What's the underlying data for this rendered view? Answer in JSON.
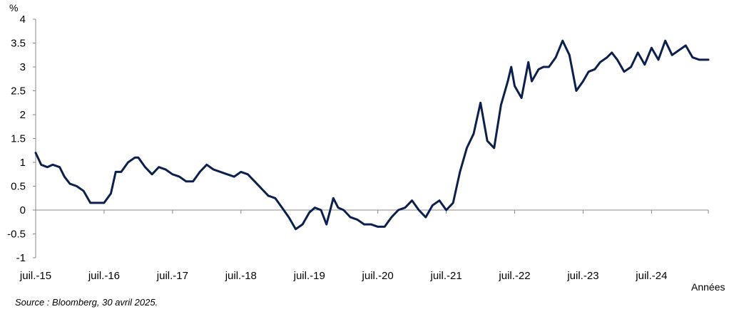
{
  "chart_data": {
    "type": "line",
    "ylabel": "%",
    "xlabel": "Années",
    "ylim": [
      -1,
      4
    ],
    "yticks": [
      -1,
      -0.5,
      0,
      0.5,
      1,
      1.5,
      2,
      2.5,
      3,
      3.5,
      4
    ],
    "ytick_labels": [
      "-1",
      "-0.5",
      "0",
      "0.5",
      "1",
      "1.5",
      "2",
      "2.5",
      "3",
      "3.5",
      "4"
    ],
    "xlim": [
      2015.5,
      2025.33
    ],
    "xticks": [
      2015.5,
      2016.5,
      2017.5,
      2018.5,
      2019.5,
      2020.5,
      2021.5,
      2022.5,
      2023.5,
      2024.5
    ],
    "xtick_labels": [
      "juil.-15",
      "juil.-16",
      "juil.-17",
      "juil.-18",
      "juil.-19",
      "juil.-20",
      "juil.-21",
      "juil.-22",
      "juil.-23",
      "juil.-24"
    ],
    "grid": false,
    "legend": "none",
    "line_color": "#0d1f4f",
    "series": [
      {
        "x": [
          2015.5,
          2015.58,
          2015.67,
          2015.75,
          2015.85,
          2015.92,
          2016.0,
          2016.1,
          2016.2,
          2016.3,
          2016.4,
          2016.5,
          2016.6,
          2016.67,
          2016.75,
          2016.85,
          2016.95,
          2017.0,
          2017.1,
          2017.2,
          2017.3,
          2017.4,
          2017.5,
          2017.6,
          2017.7,
          2017.8,
          2017.9,
          2018.0,
          2018.1,
          2018.2,
          2018.3,
          2018.4,
          2018.5,
          2018.6,
          2018.7,
          2018.8,
          2018.9,
          2019.0,
          2019.1,
          2019.2,
          2019.3,
          2019.4,
          2019.5,
          2019.58,
          2019.67,
          2019.75,
          2019.85,
          2019.92,
          2020.0,
          2020.1,
          2020.2,
          2020.3,
          2020.4,
          2020.5,
          2020.6,
          2020.7,
          2020.8,
          2020.9,
          2021.0,
          2021.1,
          2021.2,
          2021.3,
          2021.4,
          2021.5,
          2021.6,
          2021.7,
          2021.8,
          2021.9,
          2022.0,
          2022.1,
          2022.2,
          2022.3,
          2022.4,
          2022.45,
          2022.5,
          2022.6,
          2022.7,
          2022.75,
          2022.85,
          2022.92,
          2023.0,
          2023.1,
          2023.2,
          2023.3,
          2023.4,
          2023.5,
          2023.58,
          2023.67,
          2023.75,
          2023.85,
          2023.92,
          2024.0,
          2024.1,
          2024.2,
          2024.3,
          2024.4,
          2024.5,
          2024.6,
          2024.7,
          2024.8,
          2024.9,
          2025.0,
          2025.1,
          2025.2,
          2025.33
        ],
        "values": [
          1.2,
          0.95,
          0.9,
          0.95,
          0.9,
          0.7,
          0.55,
          0.5,
          0.4,
          0.15,
          0.15,
          0.15,
          0.35,
          0.8,
          0.8,
          1.0,
          1.1,
          1.1,
          0.9,
          0.75,
          0.9,
          0.85,
          0.75,
          0.7,
          0.6,
          0.6,
          0.8,
          0.95,
          0.85,
          0.8,
          0.75,
          0.7,
          0.8,
          0.75,
          0.6,
          0.45,
          0.3,
          0.25,
          0.05,
          -0.15,
          -0.4,
          -0.3,
          -0.05,
          0.05,
          0.0,
          -0.3,
          0.25,
          0.05,
          0.0,
          -0.15,
          -0.2,
          -0.3,
          -0.3,
          -0.35,
          -0.35,
          -0.15,
          0.0,
          0.05,
          0.2,
          0.0,
          -0.15,
          0.1,
          0.2,
          0.0,
          0.15,
          0.8,
          1.3,
          1.6,
          2.25,
          1.45,
          1.3,
          2.2,
          2.7,
          3.0,
          2.6,
          2.35,
          3.1,
          2.7,
          2.95,
          3.0,
          3.0,
          3.2,
          3.55,
          3.25,
          2.5,
          2.7,
          2.9,
          2.95,
          3.1,
          3.2,
          3.3,
          3.15,
          2.9,
          3.0,
          3.3,
          3.05,
          3.4,
          3.15,
          3.55,
          3.25,
          3.35,
          3.45,
          3.2,
          3.15,
          3.15
        ]
      }
    ]
  },
  "source": "Source : Bloomberg, 30 avril 2025."
}
